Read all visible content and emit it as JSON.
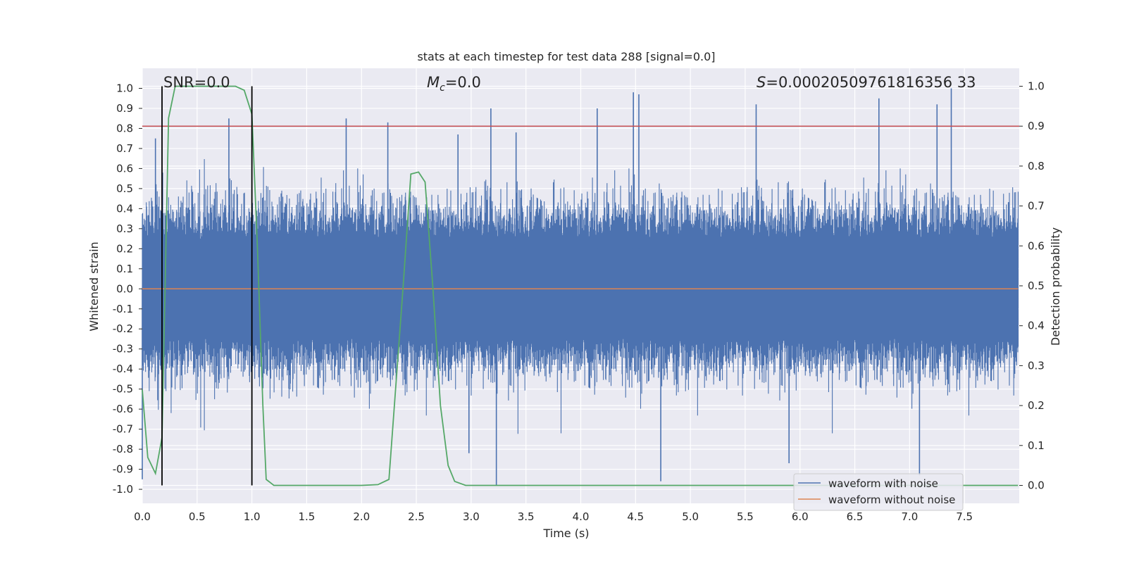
{
  "chart_data": {
    "type": "line",
    "title": "stats at each timestep for test data 288 [signal=0.0]",
    "xlabel": "Time (s)",
    "ylabel": "Whitened strain",
    "ylabel_right": "Detection probability",
    "xlim": [
      0.0,
      8.0
    ],
    "ylim": [
      -1.07,
      1.1
    ],
    "ylim_right": [
      -0.045,
      1.045
    ],
    "x_ticks": [
      "0.0",
      "0.5",
      "1.0",
      "1.5",
      "2.0",
      "2.5",
      "3.0",
      "3.5",
      "4.0",
      "4.5",
      "5.0",
      "5.5",
      "6.0",
      "6.5",
      "7.0",
      "7.5"
    ],
    "y_ticks": [
      "1.0",
      "0.9",
      "0.8",
      "0.7",
      "0.6",
      "0.5",
      "0.4",
      "0.3",
      "0.2",
      "0.1",
      "0.0",
      "-0.1",
      "-0.2",
      "-0.3",
      "-0.4",
      "-0.5",
      "-0.6",
      "-0.7",
      "-0.8",
      "-0.9",
      "-1.0"
    ],
    "y_ticks_right": [
      "1.0",
      "0.9",
      "0.8",
      "0.7",
      "0.6",
      "0.5",
      "0.4",
      "0.3",
      "0.2",
      "0.1",
      "0.0"
    ],
    "grid": true,
    "legend_position": "bottom-right",
    "annotations": {
      "snr": "SNR=0.0",
      "mc_symbol": "M",
      "mc_sub": "c",
      "mc_value": "=0.0",
      "s_symbol": "S",
      "s_value": "=0.00020509761816356 33"
    },
    "threshold": {
      "axis": "right",
      "value": 0.9,
      "color": "#c44e52"
    },
    "vertical_markers": [
      0.18,
      1.0
    ],
    "series": [
      {
        "name": "waveform with noise",
        "color": "#4c72b0",
        "axis": "left",
        "description_peaks": [
          {
            "x": 0.12,
            "y": 0.75
          },
          {
            "x": 0.79,
            "y": 0.85
          },
          {
            "x": 1.86,
            "y": 0.85
          },
          {
            "x": 2.24,
            "y": 0.83
          },
          {
            "x": 2.88,
            "y": 0.77
          },
          {
            "x": 3.18,
            "y": 0.9
          },
          {
            "x": 3.41,
            "y": 0.78
          },
          {
            "x": 4.15,
            "y": 0.9
          },
          {
            "x": 4.48,
            "y": 0.98
          },
          {
            "x": 4.53,
            "y": 0.97
          },
          {
            "x": 5.6,
            "y": 0.92
          },
          {
            "x": 7.38,
            "y": 1.0
          },
          {
            "x": 7.25,
            "y": 0.92
          },
          {
            "x": 6.72,
            "y": 0.95
          }
        ],
        "description_troughs": [
          {
            "x": 0.0,
            "y": -0.95
          },
          {
            "x": 3.23,
            "y": -0.98
          },
          {
            "x": 4.73,
            "y": -0.96
          },
          {
            "x": 7.09,
            "y": -0.93
          },
          {
            "x": 5.9,
            "y": -0.87
          },
          {
            "x": 2.98,
            "y": -0.82
          }
        ],
        "typical_amplitude": 0.45
      },
      {
        "name": "waveform without noise",
        "color": "#dd8452",
        "axis": "left",
        "x": [
          0.0,
          7.99
        ],
        "y": [
          0.0,
          0.0
        ]
      },
      {
        "name": "",
        "color": "#55a868",
        "axis": "right",
        "x": [
          0.0,
          0.05,
          0.12,
          0.18,
          0.24,
          0.3,
          0.4,
          0.6,
          0.85,
          0.93,
          1.0,
          1.05,
          1.1,
          1.13,
          1.2,
          1.5,
          2.0,
          2.15,
          2.25,
          2.3,
          2.38,
          2.45,
          2.52,
          2.58,
          2.65,
          2.72,
          2.79,
          2.85,
          2.95,
          3.5,
          5.0,
          7.5,
          7.99
        ],
        "y": [
          0.24,
          0.07,
          0.03,
          0.12,
          0.92,
          1.0,
          1.0,
          1.0,
          1.0,
          0.99,
          0.93,
          0.6,
          0.2,
          0.015,
          0.0,
          0.0,
          0.0,
          0.002,
          0.015,
          0.2,
          0.5,
          0.78,
          0.785,
          0.76,
          0.5,
          0.2,
          0.05,
          0.01,
          0.0,
          0.0,
          0.0,
          0.0,
          0.0
        ]
      }
    ]
  }
}
